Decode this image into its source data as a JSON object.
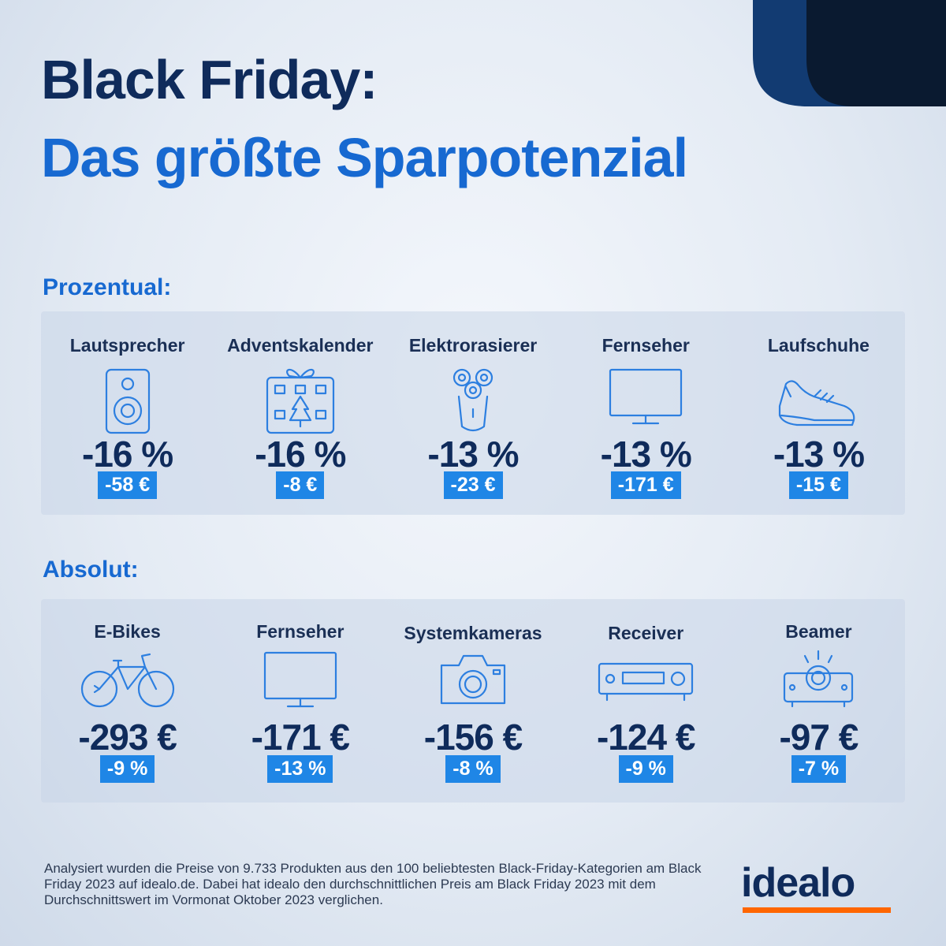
{
  "title": {
    "line1": "Black Friday:",
    "line2": "Das größte Sparpotenzial"
  },
  "percent_section": {
    "label": "Prozentual:",
    "items": [
      {
        "label": "Lautsprecher",
        "icon": "speaker-icon",
        "value": "-16 %",
        "badge": "-58 €"
      },
      {
        "label": "Adventskalender",
        "icon": "advent-calendar-icon",
        "value": "-16 %",
        "badge": "-8 €"
      },
      {
        "label": "Elektrorasierer",
        "icon": "electric-shaver-icon",
        "value": "-13 %",
        "badge": "-23 €"
      },
      {
        "label": "Fernseher",
        "icon": "tv-icon",
        "value": "-13 %",
        "badge": "-171 €"
      },
      {
        "label": "Laufschuhe",
        "icon": "running-shoe-icon",
        "value": "-13 %",
        "badge": "-15 €"
      }
    ]
  },
  "absolute_section": {
    "label": "Absolut:",
    "items": [
      {
        "label": "E-Bikes",
        "icon": "e-bike-icon",
        "value": "-293 €",
        "badge": "-9 %"
      },
      {
        "label": "Fernseher",
        "icon": "tv-icon",
        "value": "-171 €",
        "badge": "-13 %"
      },
      {
        "label": "Systemkameras",
        "icon": "camera-icon",
        "value": "-156 €",
        "badge": "-8 %"
      },
      {
        "label": "Receiver",
        "icon": "receiver-icon",
        "value": "-124 €",
        "badge": "-9 %"
      },
      {
        "label": "Beamer",
        "icon": "projector-icon",
        "value": "-97 €",
        "badge": "-7 %"
      }
    ]
  },
  "footnote": "Analysiert wurden die Preise von 9.733 Produkten aus den 100 beliebtesten Black-Friday-Kategorien am Black Friday 2023 auf idealo.de. Dabei hat idealo den durchschnittlichen Preis am Black Friday 2023 mit dem Durchschnittswert im Vormonat Oktober 2023 verglichen.",
  "logo": {
    "text": "idealo"
  },
  "colors": {
    "navy": "#0f2b5b",
    "accent_blue": "#1769d1",
    "badge_blue": "#1f86e6",
    "logo_orange": "#ff6600"
  }
}
